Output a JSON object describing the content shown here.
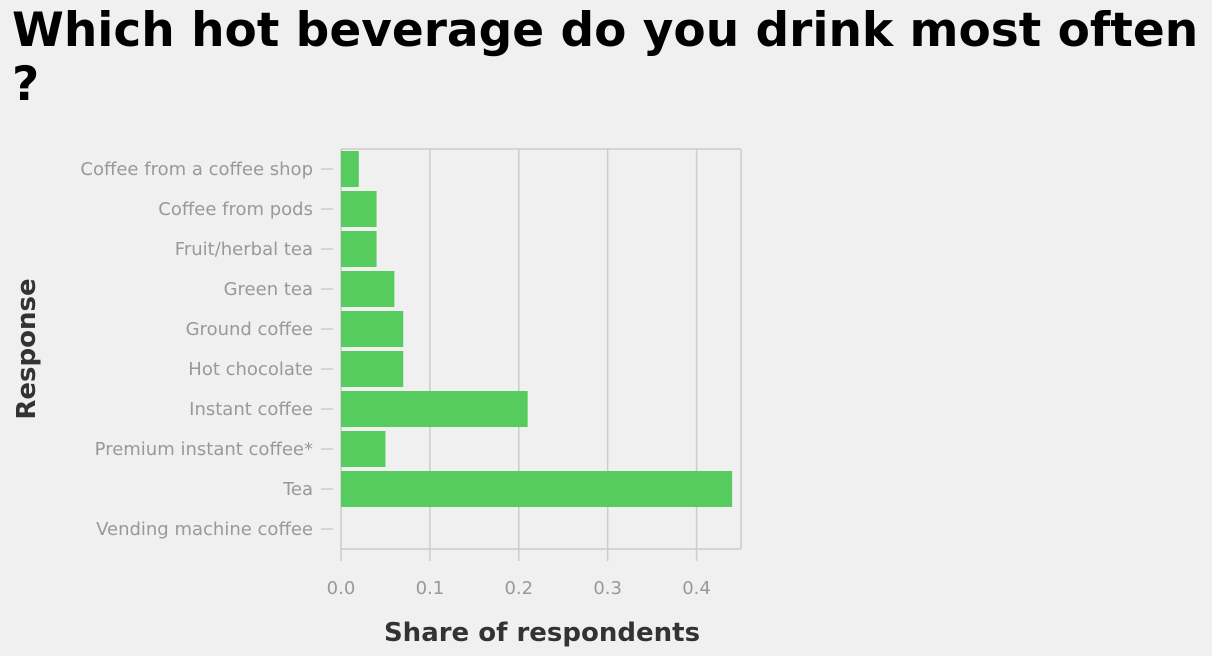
{
  "chart_data": {
    "type": "bar",
    "orientation": "horizontal",
    "title": "Which hot beverage do you drink most often ?",
    "xlabel": "Share of respondents",
    "ylabel": "Response",
    "categories": [
      "Coffee from a coffee shop",
      "Coffee from pods",
      "Fruit/herbal tea",
      "Green tea",
      "Ground coffee",
      "Hot chocolate",
      "Instant coffee",
      "Premium instant coffee*",
      "Tea",
      "Vending machine coffee"
    ],
    "values": [
      0.02,
      0.04,
      0.04,
      0.06,
      0.07,
      0.07,
      0.21,
      0.05,
      0.44,
      0.0
    ],
    "xlim": [
      0,
      0.45
    ],
    "xticks": [
      0.0,
      0.1,
      0.2,
      0.3,
      0.4
    ],
    "xtick_labels": [
      "0.0",
      "0.1",
      "0.2",
      "0.3",
      "0.4"
    ],
    "grid": "vertical",
    "bar_color": "#56cc5e",
    "grid_color": "#cccccc"
  }
}
